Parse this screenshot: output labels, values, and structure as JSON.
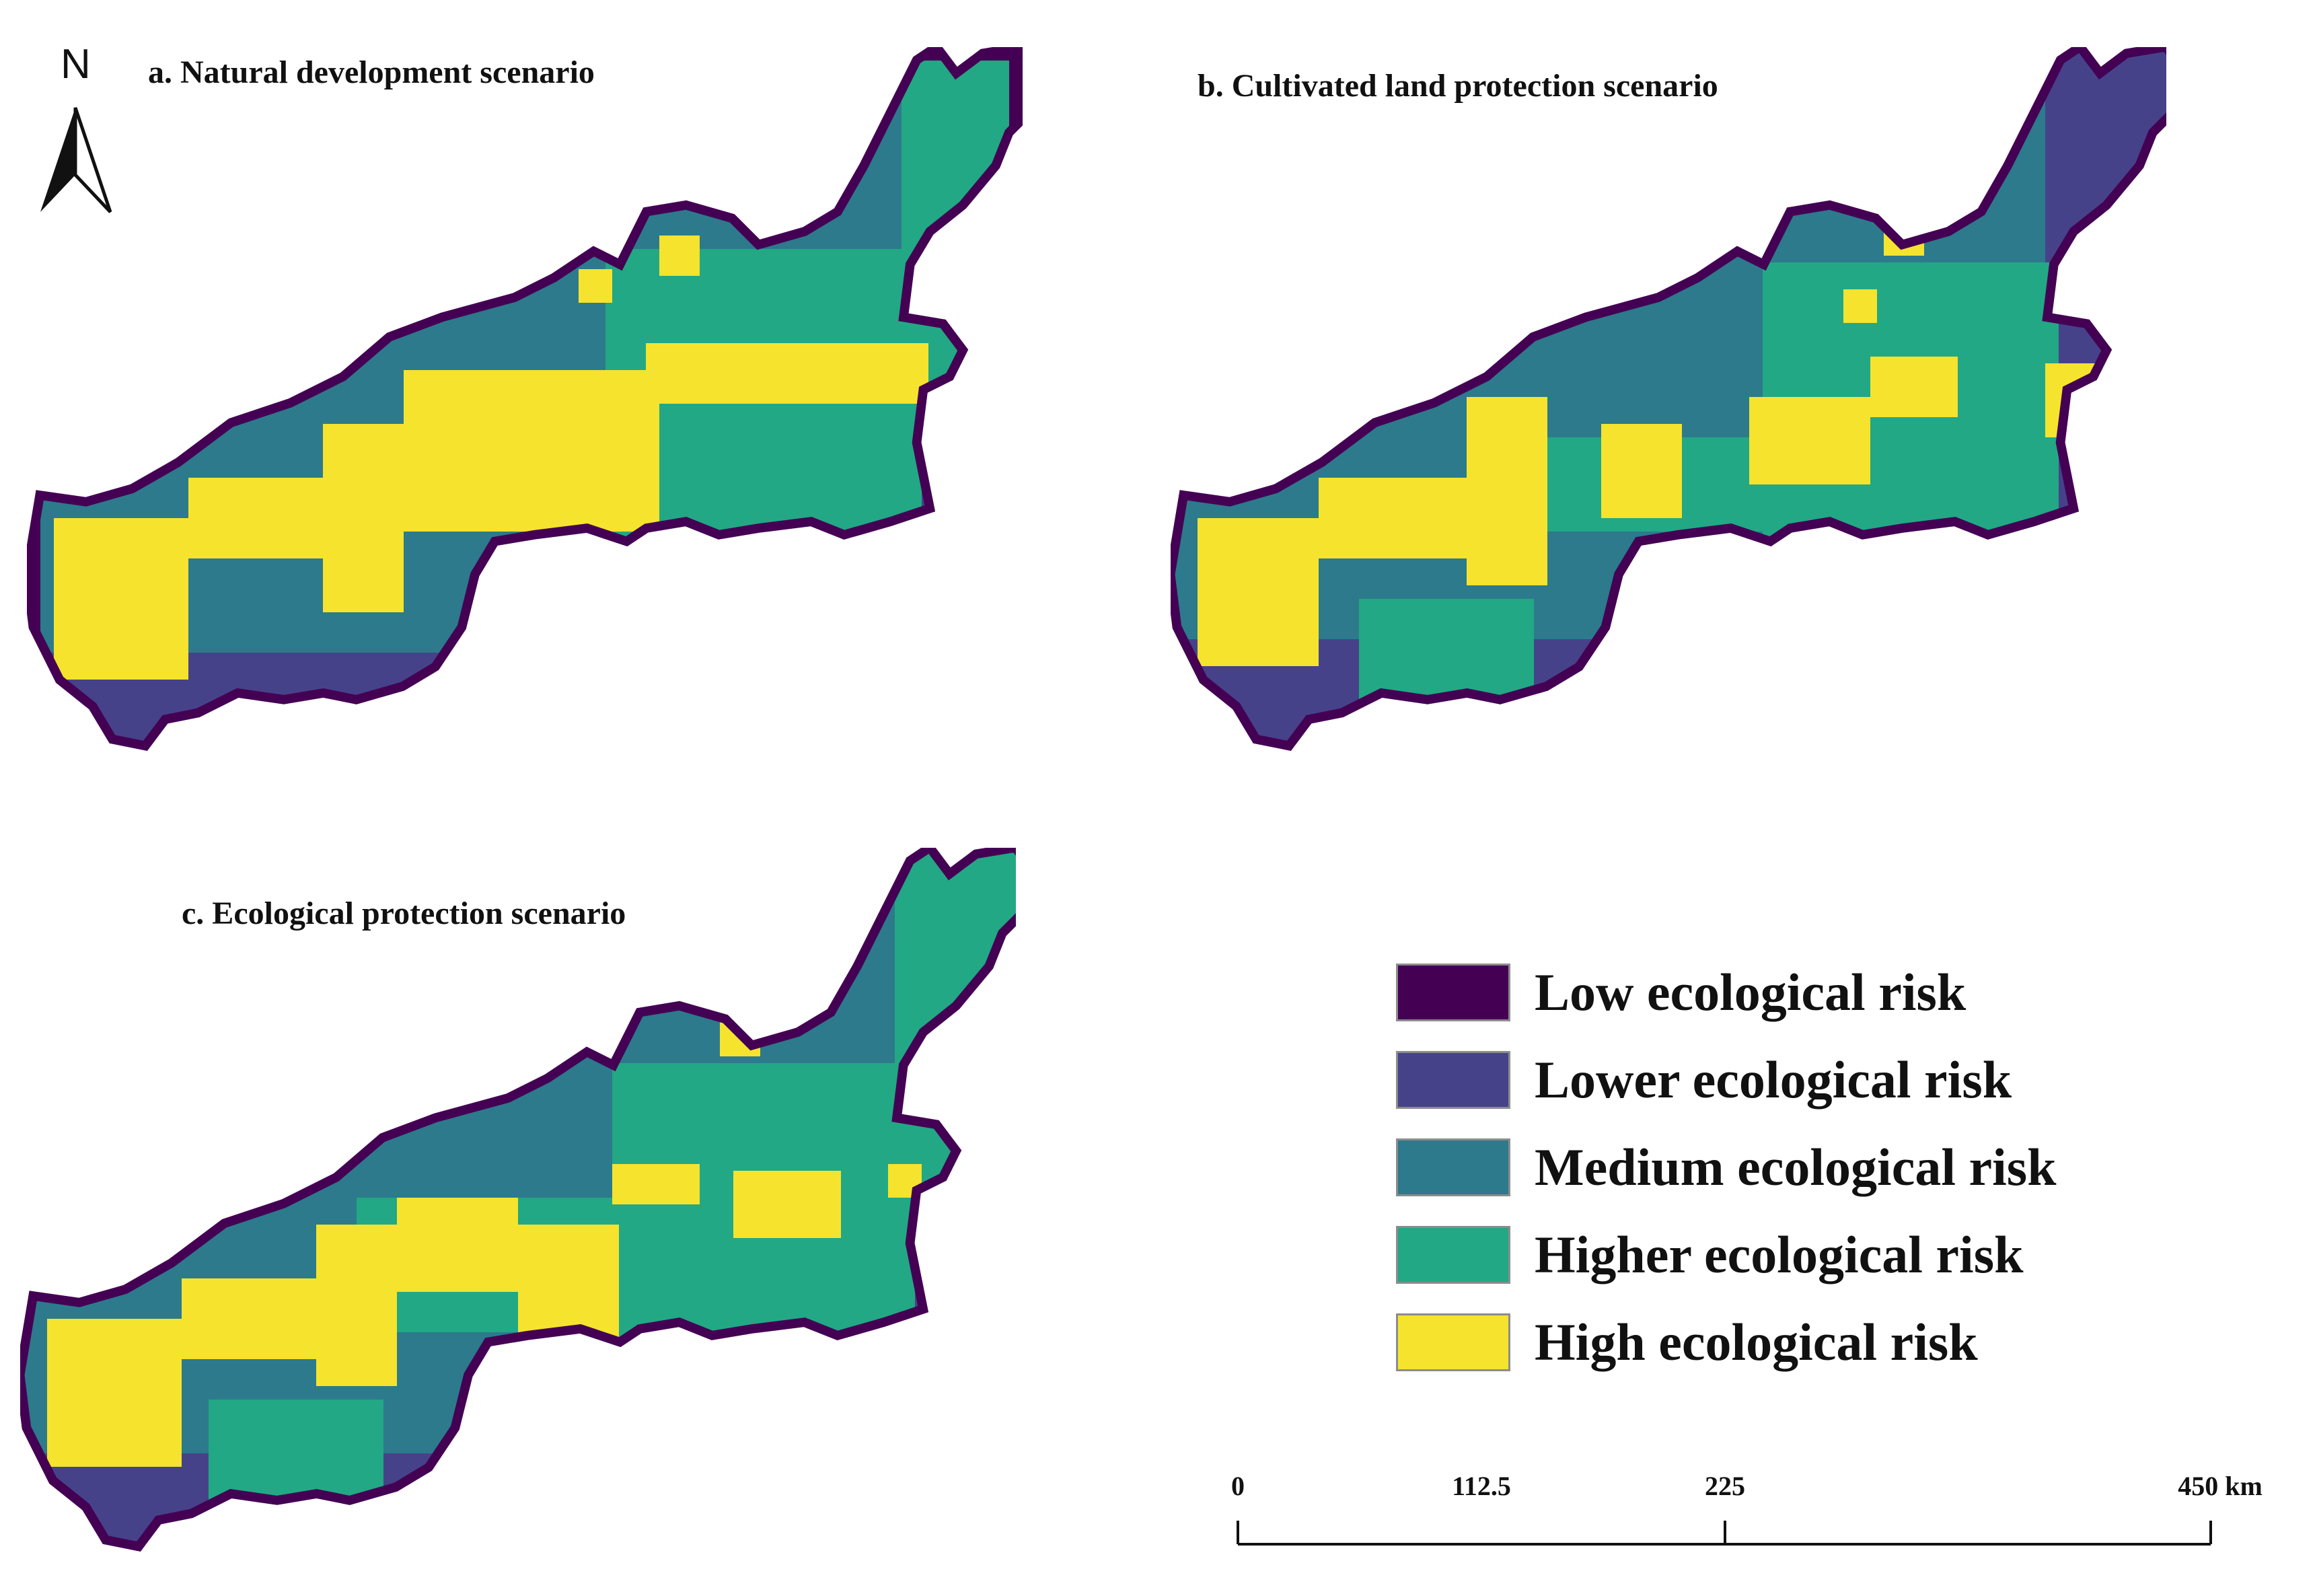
{
  "panels": [
    {
      "id": "a",
      "title": "a. Natural development scenario"
    },
    {
      "id": "b",
      "title": "b. Cultivated land protection scenario"
    },
    {
      "id": "c",
      "title": "c. Ecological protection scenario"
    }
  ],
  "north_arrow": {
    "label": "N"
  },
  "legend": {
    "items": [
      {
        "label": "Low ecological risk",
        "color": "#440154"
      },
      {
        "label": "Lower ecological risk",
        "color": "#46428a"
      },
      {
        "label": "Medium ecological risk",
        "color": "#2c7a8c"
      },
      {
        "label": "Higher ecological risk",
        "color": "#22a884"
      },
      {
        "label": "High ecological risk",
        "color": "#f5e32e"
      }
    ]
  },
  "scale_bar": {
    "ticks": [
      "0",
      "112.5",
      "225",
      "450 km"
    ],
    "values": [
      0,
      112.5,
      225,
      450
    ]
  }
}
